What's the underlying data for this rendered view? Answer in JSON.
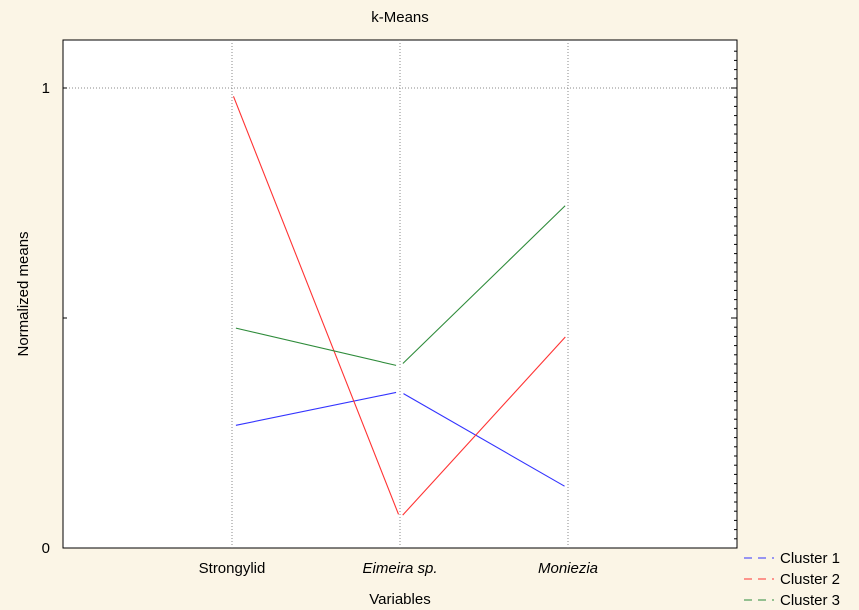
{
  "chart_data": {
    "type": "line",
    "title": "k-Means",
    "xlabel": "Variables",
    "ylabel": "Normalized means",
    "categories": [
      "Strongylid",
      "Eimeira sp.",
      "Moniezia"
    ],
    "category_italic": [
      false,
      true,
      true
    ],
    "y_tick_labels": [
      "0",
      "1"
    ],
    "ylim": [
      0,
      1.1
    ],
    "grid": true,
    "legend_position": "bottom-right",
    "series": [
      {
        "name": "Cluster 1",
        "color": "#3333ff",
        "values": [
          0.265,
          0.34,
          0.13
        ]
      },
      {
        "name": "Cluster 2",
        "color": "#ff3333",
        "values": [
          0.99,
          0.065,
          0.465
        ]
      },
      {
        "name": "Cluster 3",
        "color": "#2e8b3a",
        "values": [
          0.48,
          0.395,
          0.75
        ]
      }
    ]
  }
}
